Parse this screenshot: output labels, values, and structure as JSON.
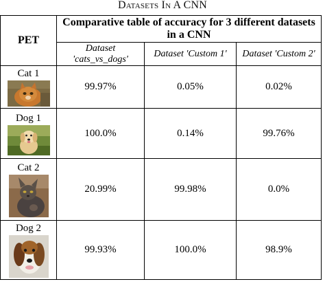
{
  "caption": {
    "text": "Datasets In A CNN"
  },
  "table": {
    "pet_header": "PET",
    "title": "Comparative table of accuracy for 3 different datasets in a CNN",
    "columns": [
      "Dataset 'cats_vs_dogs'",
      "Dataset 'Custom 1'",
      "Dataset 'Custom 2'"
    ],
    "rows": [
      {
        "pet": "Cat 1",
        "photo": "orange-tabby-cat-photo",
        "values": [
          "99.97%",
          "0.05%",
          "0.02%"
        ]
      },
      {
        "pet": "Dog 1",
        "photo": "golden-retriever-puppy-photo",
        "values": [
          "100.0%",
          "0.14%",
          "99.76%"
        ]
      },
      {
        "pet": "Cat 2",
        "photo": "gray-cat-photo",
        "values": [
          "20.99%",
          "99.98%",
          "0.0%"
        ]
      },
      {
        "pet": "Dog 2",
        "photo": "beagle-dog-photo",
        "values": [
          "99.93%",
          "100.0%",
          "98.9%"
        ]
      }
    ]
  }
}
